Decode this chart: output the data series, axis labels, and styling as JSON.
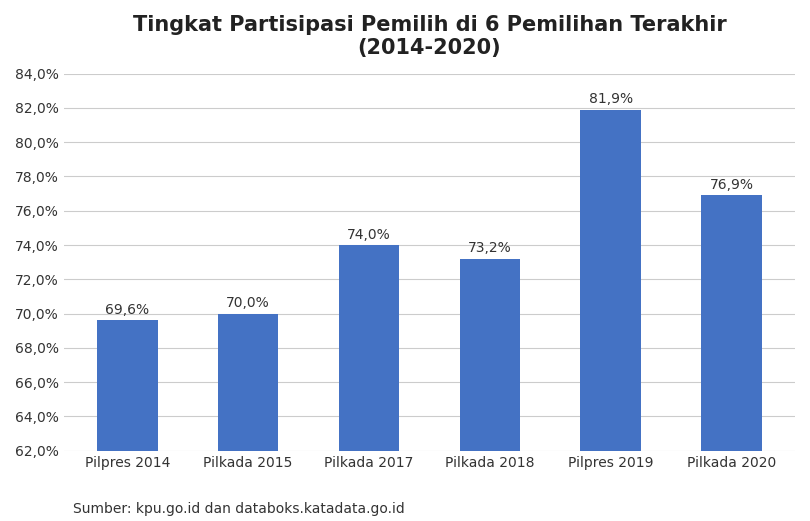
{
  "title": "Tingkat Partisipasi Pemilih di 6 Pemilihan Terakhir\n(2014-2020)",
  "categories": [
    "Pilpres 2014",
    "Pilkada 2015",
    "Pilkada 2017",
    "Pilkada 2018",
    "Pilpres 2019",
    "Pilkada 2020"
  ],
  "values": [
    69.6,
    70.0,
    74.0,
    73.2,
    81.9,
    76.9
  ],
  "bar_color": "#4472C4",
  "ylim_min": 62.0,
  "ylim_max": 84.0,
  "ytick_step": 2.0,
  "label_fontsize": 10,
  "title_fontsize": 15,
  "tick_fontsize": 10,
  "source_text": "Sumber: kpu.go.id dan databoks.katadata.go.id",
  "background_color": "#ffffff",
  "grid_color": "#cccccc"
}
